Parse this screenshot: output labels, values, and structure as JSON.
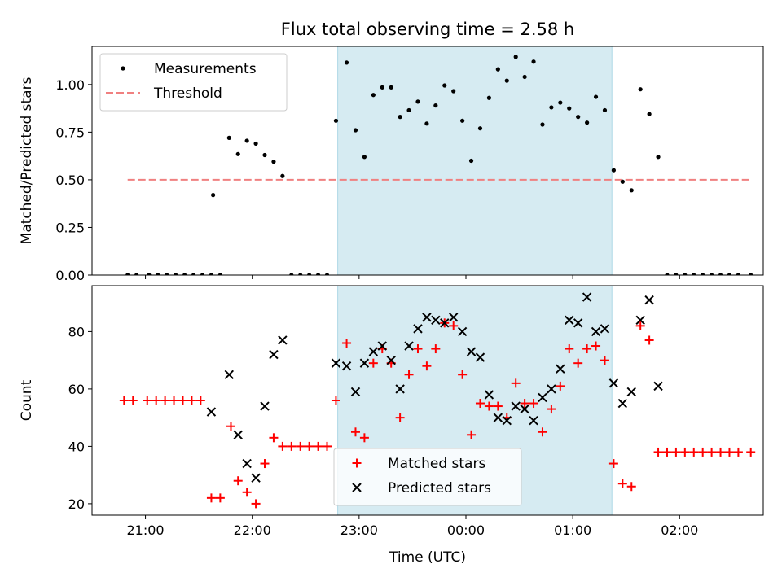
{
  "title": "Flux total observing time = 2.58 h",
  "chart_data": [
    {
      "type": "scatter",
      "panel": "top",
      "ylabel": "Matched/Predicted stars",
      "xlabel": "",
      "x_ticks": [
        "21:00",
        "22:00",
        "23:00",
        "00:00",
        "01:00",
        "02:00"
      ],
      "ylim": [
        0,
        1.2
      ],
      "y_ticks": [
        "0.00",
        "0.25",
        "0.50",
        "0.75",
        "1.00"
      ],
      "legend_position": "top-left",
      "shaded_interval": [
        "22:48",
        "01:22"
      ],
      "threshold": {
        "name": "Threshold",
        "value": 0.5,
        "color": "#f08080",
        "x_range": [
          "20:50",
          "02:40"
        ]
      },
      "series": [
        {
          "name": "Measurements",
          "color": "#000000",
          "points": [
            [
              "20:50",
              0.0
            ],
            [
              "20:55",
              0.0
            ],
            [
              "21:02",
              0.0
            ],
            [
              "21:07",
              0.0
            ],
            [
              "21:12",
              0.0
            ],
            [
              "21:17",
              0.0
            ],
            [
              "21:22",
              0.0
            ],
            [
              "21:27",
              0.0
            ],
            [
              "21:32",
              0.0
            ],
            [
              "21:37",
              0.0
            ],
            [
              "21:38",
              0.42
            ],
            [
              "21:42",
              0.0
            ],
            [
              "21:47",
              0.72
            ],
            [
              "21:52",
              0.635
            ],
            [
              "21:57",
              0.705
            ],
            [
              "22:02",
              0.69
            ],
            [
              "22:07",
              0.63
            ],
            [
              "22:12",
              0.595
            ],
            [
              "22:17",
              0.52
            ],
            [
              "22:22",
              0.0
            ],
            [
              "22:27",
              0.0
            ],
            [
              "22:32",
              0.0
            ],
            [
              "22:37",
              0.0
            ],
            [
              "22:42",
              0.0
            ],
            [
              "22:47",
              0.81
            ],
            [
              "22:53",
              1.115
            ],
            [
              "22:58",
              0.76
            ],
            [
              "23:03",
              0.62
            ],
            [
              "23:08",
              0.945
            ],
            [
              "23:13",
              0.985
            ],
            [
              "23:18",
              0.985
            ],
            [
              "23:23",
              0.83
            ],
            [
              "23:28",
              0.865
            ],
            [
              "23:33",
              0.91
            ],
            [
              "23:38",
              0.795
            ],
            [
              "23:43",
              0.89
            ],
            [
              "23:48",
              0.995
            ],
            [
              "23:53",
              0.965
            ],
            [
              "23:58",
              0.81
            ],
            [
              "00:03",
              0.6
            ],
            [
              "00:08",
              0.77
            ],
            [
              "00:13",
              0.93
            ],
            [
              "00:18",
              1.08
            ],
            [
              "00:23",
              1.02
            ],
            [
              "00:28",
              1.145
            ],
            [
              "00:33",
              1.04
            ],
            [
              "00:38",
              1.12
            ],
            [
              "00:43",
              0.79
            ],
            [
              "00:48",
              0.88
            ],
            [
              "00:53",
              0.905
            ],
            [
              "00:58",
              0.875
            ],
            [
              "01:03",
              0.83
            ],
            [
              "01:08",
              0.8
            ],
            [
              "01:13",
              0.935
            ],
            [
              "01:18",
              0.865
            ],
            [
              "01:23",
              0.55
            ],
            [
              "01:28",
              0.49
            ],
            [
              "01:33",
              0.445
            ],
            [
              "01:38",
              0.975
            ],
            [
              "01:43",
              0.845
            ],
            [
              "01:48",
              0.62
            ],
            [
              "01:53",
              0.0
            ],
            [
              "01:58",
              0.0
            ],
            [
              "02:03",
              0.0
            ],
            [
              "02:08",
              0.0
            ],
            [
              "02:13",
              0.0
            ],
            [
              "02:18",
              0.0
            ],
            [
              "02:23",
              0.0
            ],
            [
              "02:28",
              0.0
            ],
            [
              "02:33",
              0.0
            ],
            [
              "02:40",
              0.0
            ]
          ]
        }
      ]
    },
    {
      "type": "scatter",
      "panel": "bottom",
      "ylabel": "Count",
      "xlabel": "Time (UTC)",
      "x_ticks": [
        "21:00",
        "22:00",
        "23:00",
        "00:00",
        "01:00",
        "02:00"
      ],
      "ylim": [
        16,
        96
      ],
      "y_ticks": [
        "20",
        "40",
        "60",
        "80"
      ],
      "legend_position": "bottom-center",
      "shaded_interval": [
        "22:48",
        "01:22"
      ],
      "series": [
        {
          "name": "Matched stars",
          "marker": "+",
          "color": "#ff0000",
          "points": [
            [
              "20:48",
              56
            ],
            [
              "20:53",
              56
            ],
            [
              "21:01",
              56
            ],
            [
              "21:06",
              56
            ],
            [
              "21:11",
              56
            ],
            [
              "21:16",
              56
            ],
            [
              "21:21",
              56
            ],
            [
              "21:26",
              56
            ],
            [
              "21:31",
              56
            ],
            [
              "21:37",
              22
            ],
            [
              "21:42",
              22
            ],
            [
              "21:48",
              47
            ],
            [
              "21:52",
              28
            ],
            [
              "21:57",
              24
            ],
            [
              "22:02",
              20
            ],
            [
              "22:07",
              34
            ],
            [
              "22:12",
              43
            ],
            [
              "22:17",
              40
            ],
            [
              "22:22",
              40
            ],
            [
              "22:27",
              40
            ],
            [
              "22:32",
              40
            ],
            [
              "22:37",
              40
            ],
            [
              "22:42",
              40
            ],
            [
              "22:47",
              56
            ],
            [
              "22:53",
              76
            ],
            [
              "22:58",
              45
            ],
            [
              "23:03",
              43
            ],
            [
              "23:08",
              69
            ],
            [
              "23:13",
              74
            ],
            [
              "23:18",
              69
            ],
            [
              "23:23",
              50
            ],
            [
              "23:28",
              65
            ],
            [
              "23:33",
              74
            ],
            [
              "23:38",
              68
            ],
            [
              "23:43",
              74
            ],
            [
              "23:48",
              83
            ],
            [
              "23:53",
              82
            ],
            [
              "23:58",
              65
            ],
            [
              "00:03",
              44
            ],
            [
              "00:08",
              55
            ],
            [
              "00:13",
              54
            ],
            [
              "00:18",
              54
            ],
            [
              "00:23",
              50
            ],
            [
              "00:28",
              62
            ],
            [
              "00:33",
              55
            ],
            [
              "00:38",
              55
            ],
            [
              "00:43",
              45
            ],
            [
              "00:48",
              53
            ],
            [
              "00:53",
              61
            ],
            [
              "00:58",
              74
            ],
            [
              "01:03",
              69
            ],
            [
              "01:08",
              74
            ],
            [
              "01:13",
              75
            ],
            [
              "01:18",
              70
            ],
            [
              "01:23",
              34
            ],
            [
              "01:28",
              27
            ],
            [
              "01:33",
              26
            ],
            [
              "01:38",
              82
            ],
            [
              "01:43",
              77
            ],
            [
              "01:48",
              38
            ],
            [
              "01:53",
              38
            ],
            [
              "01:58",
              38
            ],
            [
              "02:03",
              38
            ],
            [
              "02:08",
              38
            ],
            [
              "02:13",
              38
            ],
            [
              "02:18",
              38
            ],
            [
              "02:23",
              38
            ],
            [
              "02:28",
              38
            ],
            [
              "02:33",
              38
            ],
            [
              "02:40",
              38
            ]
          ]
        },
        {
          "name": "Predicted stars",
          "marker": "x",
          "color": "#000000",
          "points": [
            [
              "21:37",
              52
            ],
            [
              "21:47",
              65
            ],
            [
              "21:52",
              44
            ],
            [
              "21:57",
              34
            ],
            [
              "22:02",
              29
            ],
            [
              "22:07",
              54
            ],
            [
              "22:12",
              72
            ],
            [
              "22:17",
              77
            ],
            [
              "22:47",
              69
            ],
            [
              "22:53",
              68
            ],
            [
              "22:58",
              59
            ],
            [
              "23:03",
              69
            ],
            [
              "23:08",
              73
            ],
            [
              "23:13",
              75
            ],
            [
              "23:18",
              70
            ],
            [
              "23:23",
              60
            ],
            [
              "23:28",
              75
            ],
            [
              "23:33",
              81
            ],
            [
              "23:38",
              85
            ],
            [
              "23:43",
              84
            ],
            [
              "23:48",
              83
            ],
            [
              "23:53",
              85
            ],
            [
              "23:58",
              80
            ],
            [
              "00:03",
              73
            ],
            [
              "00:08",
              71
            ],
            [
              "00:13",
              58
            ],
            [
              "00:18",
              50
            ],
            [
              "00:23",
              49
            ],
            [
              "00:28",
              54
            ],
            [
              "00:33",
              53
            ],
            [
              "00:38",
              49
            ],
            [
              "00:43",
              57
            ],
            [
              "00:48",
              60
            ],
            [
              "00:53",
              67
            ],
            [
              "00:58",
              84
            ],
            [
              "01:03",
              83
            ],
            [
              "01:08",
              92
            ],
            [
              "01:13",
              80
            ],
            [
              "01:18",
              81
            ],
            [
              "01:23",
              62
            ],
            [
              "01:28",
              55
            ],
            [
              "01:33",
              59
            ],
            [
              "01:38",
              84
            ],
            [
              "01:43",
              91
            ],
            [
              "01:48",
              61
            ]
          ]
        }
      ]
    }
  ]
}
